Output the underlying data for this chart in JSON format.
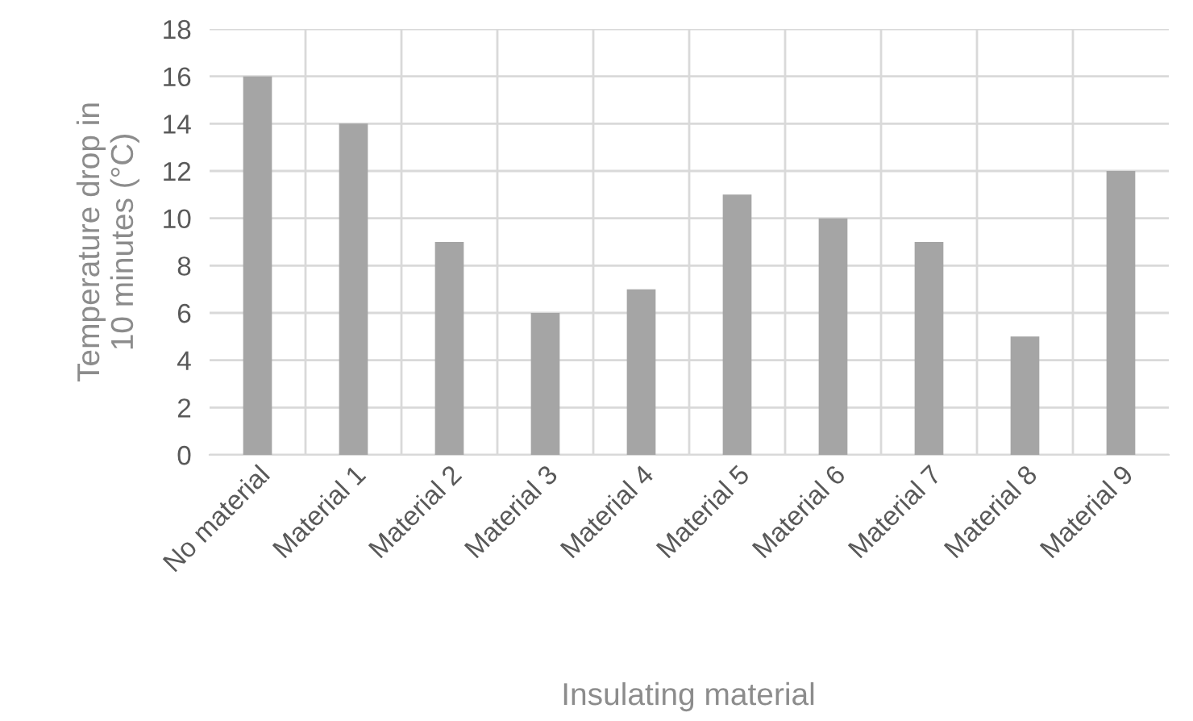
{
  "chart_data": {
    "type": "bar",
    "xlabel": "Insulating material",
    "ylabel": "Temperature drop in\n10 minutes (°C)",
    "categories": [
      "No material",
      "Material 1",
      "Material 2",
      "Material 3",
      "Material 4",
      "Material 5",
      "Material 6",
      "Material 7",
      "Material 8",
      "Material 9"
    ],
    "values": [
      16,
      14,
      9,
      6,
      7,
      11,
      10,
      9,
      5,
      12
    ],
    "color": "#a5a5a5",
    "ylim": [
      0,
      18
    ],
    "yticks": [
      0,
      2,
      4,
      6,
      8,
      10,
      12,
      14,
      16,
      18
    ],
    "grid": true
  }
}
